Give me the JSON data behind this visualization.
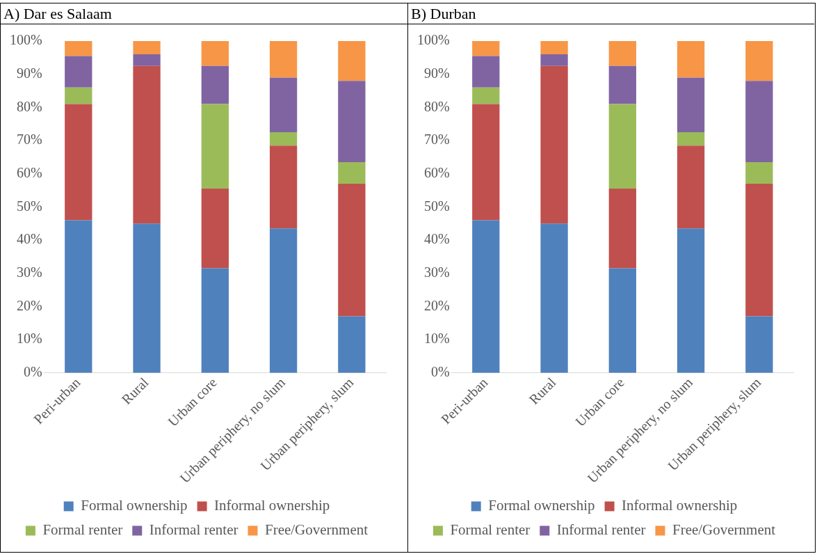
{
  "chart_data": [
    {
      "type": "bar",
      "title": "A) Dar es Salaam",
      "stacked": true,
      "legend": "bottom",
      "grid": false,
      "categories": [
        "Peri-urban",
        "Rural",
        "Urban core",
        "Urban periphery, no slum",
        "Urban periphery, slum"
      ],
      "ylim": [
        0,
        100
      ],
      "yticks": [
        {
          "value": 0,
          "label": "0%"
        },
        {
          "value": 10,
          "label": "10%"
        },
        {
          "value": 20,
          "label": "20%"
        },
        {
          "value": 30,
          "label": "30%"
        },
        {
          "value": 40,
          "label": "40%"
        },
        {
          "value": 50,
          "label": "50%"
        },
        {
          "value": 60,
          "label": "60%"
        },
        {
          "value": 70,
          "label": "70%"
        },
        {
          "value": 80,
          "label": "80%"
        },
        {
          "value": 90,
          "label": "90%"
        },
        {
          "value": 100,
          "label": "100%"
        }
      ],
      "series": [
        {
          "name": "Formal ownership",
          "color": "#4f81bd",
          "values": [
            46,
            45,
            31.5,
            43.5,
            17
          ]
        },
        {
          "name": "Informal ownership",
          "color": "#c0504d",
          "values": [
            35,
            47.5,
            24,
            25,
            40
          ]
        },
        {
          "name": "Formal renter",
          "color": "#9bbb59",
          "values": [
            5,
            0,
            25.5,
            4,
            6.5
          ]
        },
        {
          "name": "Informal renter",
          "color": "#8064a2",
          "values": [
            9.5,
            3.5,
            11.5,
            16.5,
            24.5
          ]
        },
        {
          "name": "Free/Government",
          "color": "#f79646",
          "values": [
            4.5,
            4,
            7.5,
            11,
            12
          ]
        }
      ]
    },
    {
      "type": "bar",
      "title": "B) Durban",
      "stacked": true,
      "legend": "bottom",
      "grid": false,
      "categories": [
        "Peri-urban",
        "Rural",
        "Urban core",
        "Urban periphery, no slum",
        "Urban periphery, slum"
      ],
      "ylim": [
        0,
        100
      ],
      "yticks": [
        {
          "value": 0,
          "label": "0%"
        },
        {
          "value": 10,
          "label": "10%"
        },
        {
          "value": 20,
          "label": "20%"
        },
        {
          "value": 30,
          "label": "30%"
        },
        {
          "value": 40,
          "label": "40%"
        },
        {
          "value": 50,
          "label": "50%"
        },
        {
          "value": 60,
          "label": "60%"
        },
        {
          "value": 70,
          "label": "70%"
        },
        {
          "value": 80,
          "label": "80%"
        },
        {
          "value": 90,
          "label": "90%"
        },
        {
          "value": 100,
          "label": "100%"
        }
      ],
      "series": [
        {
          "name": "Formal ownership",
          "color": "#4f81bd",
          "values": [
            46,
            45,
            31.5,
            43.5,
            17
          ]
        },
        {
          "name": "Informal ownership",
          "color": "#c0504d",
          "values": [
            35,
            47.5,
            24,
            25,
            40
          ]
        },
        {
          "name": "Formal renter",
          "color": "#9bbb59",
          "values": [
            5,
            0,
            25.5,
            4,
            6.5
          ]
        },
        {
          "name": "Informal renter",
          "color": "#8064a2",
          "values": [
            9.5,
            3.5,
            11.5,
            16.5,
            24.5
          ]
        },
        {
          "name": "Free/Government",
          "color": "#f79646",
          "values": [
            4.5,
            4,
            7.5,
            11,
            12
          ]
        }
      ]
    }
  ]
}
